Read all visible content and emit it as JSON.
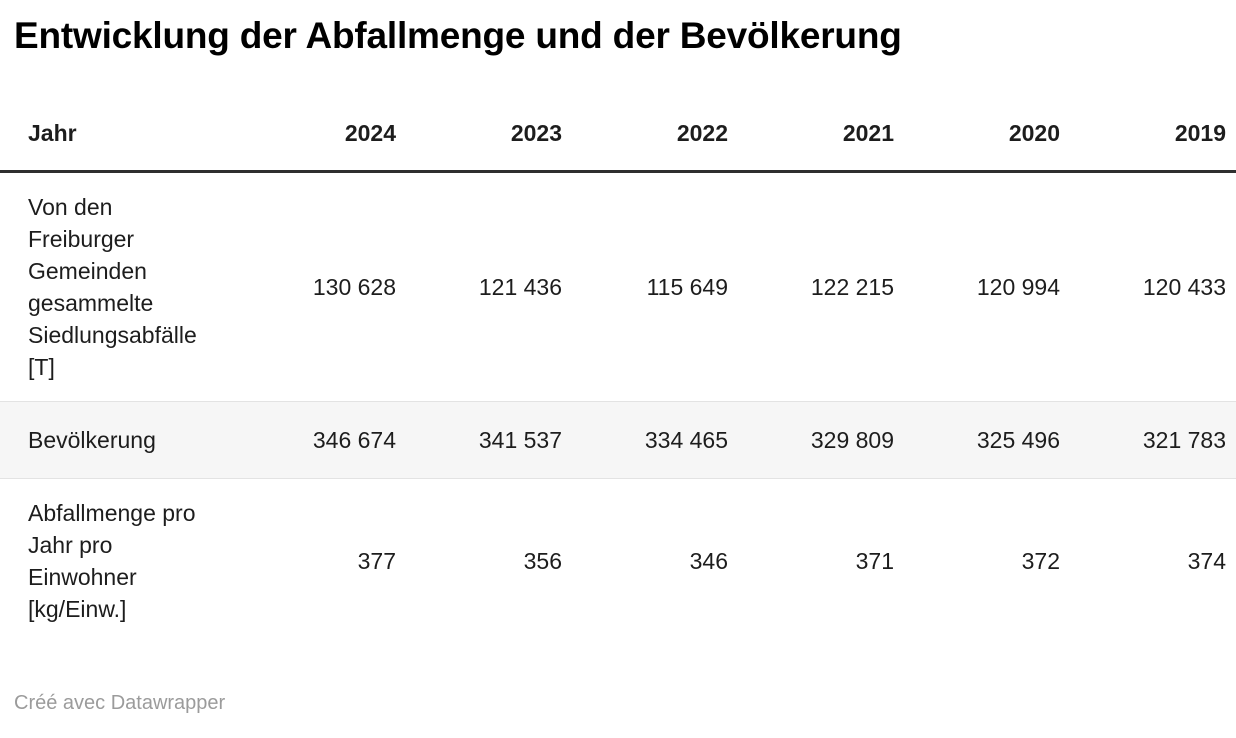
{
  "title": "Entwicklung der Abfallmenge und der Bevölkerung",
  "table": {
    "header": {
      "label": "Jahr",
      "years": [
        "2024",
        "2023",
        "2022",
        "2021",
        "2020",
        "2019"
      ]
    },
    "rows": [
      {
        "label": "Von den Freiburger Gemeinden gesammelte Siedlungsabfälle [T]",
        "values": [
          "130 628",
          "121 436",
          "115 649",
          "122 215",
          "120 994",
          "120 433"
        ]
      },
      {
        "label": "Bevölkerung",
        "values": [
          "346 674",
          "341 537",
          "334 465",
          "329 809",
          "325 496",
          "321 783"
        ]
      },
      {
        "label": "Abfallmenge pro Jahr pro Einwohner [kg/Einw.]",
        "values": [
          "377",
          "356",
          "346",
          "371",
          "372",
          "374"
        ]
      }
    ]
  },
  "footer": {
    "attribution": "Créé avec Datawrapper"
  },
  "colors": {
    "title_text": "#000000",
    "body_text": "#1d1d1d",
    "header_rule": "#2f2f2f",
    "row_border": "#e3e3e3",
    "shaded_row_bg": "#f6f6f6",
    "footer_text": "#9b9b9b",
    "background": "#ffffff"
  },
  "chart_data": {
    "type": "table",
    "title": "Entwicklung der Abfallmenge und der Bevölkerung",
    "columns": [
      "Jahr",
      "2024",
      "2023",
      "2022",
      "2021",
      "2020",
      "2019"
    ],
    "rows": [
      {
        "label": "Von den Freiburger Gemeinden gesammelte Siedlungsabfälle [T]",
        "values": [
          130628,
          121436,
          115649,
          122215,
          120994,
          120433
        ]
      },
      {
        "label": "Bevölkerung",
        "values": [
          346674,
          341537,
          334465,
          329809,
          325496,
          321783
        ]
      },
      {
        "label": "Abfallmenge pro Jahr pro Einwohner [kg/Einw.]",
        "values": [
          377,
          356,
          346,
          371,
          372,
          374
        ]
      }
    ]
  }
}
